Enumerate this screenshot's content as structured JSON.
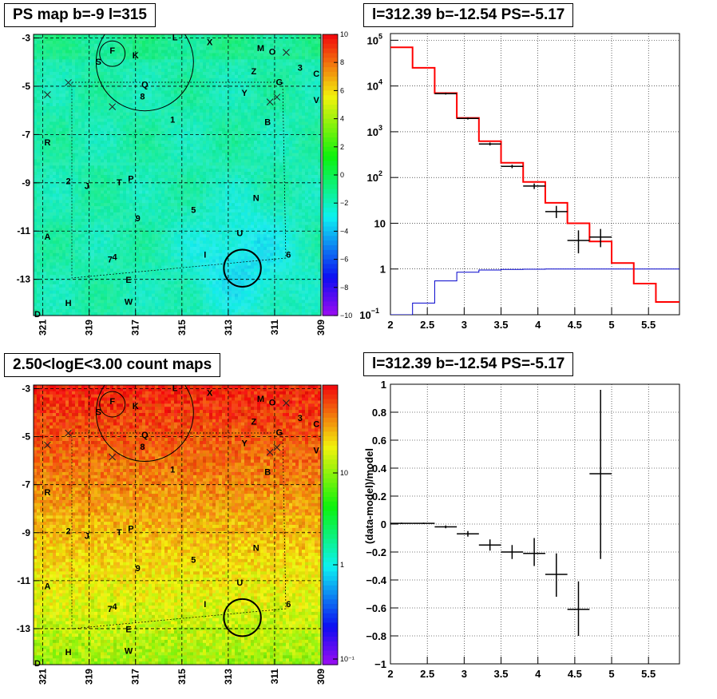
{
  "panels": {
    "ps_map": {
      "title": "PS map b=-9 l=315",
      "colorbar_ticks": [
        "10",
        "8",
        "6",
        "4",
        "2",
        "0",
        "−2",
        "−4",
        "−6",
        "−8",
        "−10"
      ]
    },
    "spectrum": {
      "title": "l=312.39 b=-12.54 PS=-5.17"
    },
    "count_map": {
      "title": "2.50<logE<3.00 count maps",
      "colorbar_ticks": [
        "10",
        "1",
        "10⁻¹"
      ]
    },
    "residual": {
      "title": "l=312.39 b=-12.54 PS=-5.17"
    }
  },
  "map_axes": {
    "x_ticks": [
      "321",
      "319",
      "317",
      "315",
      "313",
      "311",
      "309"
    ],
    "y_ticks": [
      "-3",
      "-5",
      "-7",
      "-9",
      "-11",
      "-13"
    ],
    "corner_label": "D"
  },
  "source_labels": [
    {
      "text": "F",
      "l": 318.0,
      "b": -3.65
    },
    {
      "text": "S",
      "l": 318.6,
      "b": -4.1
    },
    {
      "text": "K",
      "l": 317.0,
      "b": -3.85
    },
    {
      "text": "L",
      "l": 315.3,
      "b": -3.1
    },
    {
      "text": "X",
      "l": 313.8,
      "b": -3.3
    },
    {
      "text": "M",
      "l": 311.6,
      "b": -3.55
    },
    {
      "text": "O",
      "l": 311.1,
      "b": -3.7
    },
    {
      "text": "3",
      "l": 309.9,
      "b": -4.35
    },
    {
      "text": "C",
      "l": 309.2,
      "b": -4.6
    },
    {
      "text": "Z",
      "l": 311.9,
      "b": -4.5
    },
    {
      "text": "G",
      "l": 310.8,
      "b": -4.95
    },
    {
      "text": "Q",
      "l": 316.6,
      "b": -5.05
    },
    {
      "text": "8",
      "l": 316.7,
      "b": -5.55
    },
    {
      "text": "Y",
      "l": 312.3,
      "b": -5.4
    },
    {
      "text": "V",
      "l": 309.2,
      "b": -5.7
    },
    {
      "text": "1",
      "l": 315.4,
      "b": -6.5
    },
    {
      "text": "B",
      "l": 311.3,
      "b": -6.6
    },
    {
      "text": "R",
      "l": 320.8,
      "b": -7.45
    },
    {
      "text": "2",
      "l": 319.9,
      "b": -9.05
    },
    {
      "text": "J",
      "l": 319.1,
      "b": -9.25
    },
    {
      "text": "T",
      "l": 317.7,
      "b": -9.1
    },
    {
      "text": "P",
      "l": 317.2,
      "b": -8.95
    },
    {
      "text": "N",
      "l": 311.8,
      "b": -9.75
    },
    {
      "text": "5",
      "l": 314.5,
      "b": -10.25
    },
    {
      "text": "9",
      "l": 316.9,
      "b": -10.6
    },
    {
      "text": "U",
      "l": 312.5,
      "b": -11.2
    },
    {
      "text": "A",
      "l": 320.8,
      "b": -11.35
    },
    {
      "text": "6",
      "l": 310.4,
      "b": -12.1
    },
    {
      "text": "I",
      "l": 314.0,
      "b": -12.1
    },
    {
      "text": "4",
      "l": 317.9,
      "b": -12.2
    },
    {
      "text": "7",
      "l": 318.1,
      "b": -12.3
    },
    {
      "text": "E",
      "l": 317.3,
      "b": -13.15
    },
    {
      "text": "W",
      "l": 317.3,
      "b": -14.05
    },
    {
      "text": "H",
      "l": 319.9,
      "b": -14.1
    }
  ],
  "cross_markers": [
    {
      "l": 319.9,
      "b": -4.85
    },
    {
      "l": 320.8,
      "b": -5.35
    },
    {
      "l": 318.0,
      "b": -5.85
    },
    {
      "l": 311.2,
      "b": -5.65
    },
    {
      "l": 310.9,
      "b": -5.45
    },
    {
      "l": 310.5,
      "b": -3.6
    }
  ],
  "circles": [
    {
      "l": 318.0,
      "b": -3.65,
      "r_deg": 0.55
    },
    {
      "l": 316.6,
      "b": -4.0,
      "r_deg": 2.1
    },
    {
      "l": 312.39,
      "b": -12.54,
      "r_deg": 0.8,
      "bold": true
    }
  ],
  "colors": {
    "model": "#ff0000",
    "baseline": "#0000cc",
    "data": "#000000",
    "grid": "#000000"
  },
  "chart_data": [
    {
      "type": "line",
      "title": "l=312.39 b=-12.54 PS=-5.17",
      "yscale": "log",
      "xlim": [
        2,
        5.92
      ],
      "ylim": [
        0.1,
        140000
      ],
      "x_ticks": [
        "2",
        "2.5",
        "3",
        "3.5",
        "4",
        "4.5",
        "5",
        "5.5"
      ],
      "y_ticks": [
        {
          "v": 100000,
          "base": "10",
          "exp": "5"
        },
        {
          "v": 10000,
          "base": "10",
          "exp": "4"
        },
        {
          "v": 1000,
          "base": "10",
          "exp": "3"
        },
        {
          "v": 100,
          "base": "10",
          "exp": "2"
        },
        {
          "v": 10,
          "base": "10",
          "exp": ""
        },
        {
          "v": 1,
          "base": "1",
          "exp": ""
        },
        {
          "v": 0.1,
          "base": "10",
          "exp": "−1"
        }
      ],
      "model_steps": {
        "edges": [
          2.0,
          2.3,
          2.6,
          2.9,
          3.2,
          3.5,
          3.8,
          4.1,
          4.4,
          4.7,
          5.0,
          5.3,
          5.6,
          5.92
        ],
        "values": [
          70000,
          25000,
          7000,
          2000,
          620,
          210,
          80,
          28,
          10,
          4.0,
          1.35,
          0.48,
          0.19
        ]
      },
      "baseline_steps": {
        "edges": [
          2.0,
          2.3,
          2.6,
          2.9,
          3.2,
          3.5,
          3.8,
          4.1,
          4.4,
          4.7,
          5.0,
          5.3,
          5.6,
          5.92
        ],
        "values": [
          0.1,
          0.18,
          0.55,
          0.85,
          0.95,
          0.98,
          0.99,
          1.0,
          1.0,
          1.0,
          1.0,
          1.0,
          1.0
        ]
      },
      "data_points": [
        {
          "x": 2.75,
          "xerr": 0.15,
          "y": 6800,
          "ylo": 6500,
          "yhi": 7100
        },
        {
          "x": 3.05,
          "xerr": 0.15,
          "y": 1950,
          "ylo": 1850,
          "yhi": 2050
        },
        {
          "x": 3.35,
          "xerr": 0.15,
          "y": 540,
          "ylo": 500,
          "yhi": 580
        },
        {
          "x": 3.65,
          "xerr": 0.15,
          "y": 175,
          "ylo": 160,
          "yhi": 190
        },
        {
          "x": 3.95,
          "xerr": 0.15,
          "y": 65,
          "ylo": 56,
          "yhi": 74
        },
        {
          "x": 4.25,
          "xerr": 0.15,
          "y": 18,
          "ylo": 13,
          "yhi": 24
        },
        {
          "x": 4.55,
          "xerr": 0.15,
          "y": 4.2,
          "ylo": 2.2,
          "yhi": 7
        },
        {
          "x": 4.85,
          "xerr": 0.15,
          "y": 5.0,
          "ylo": 3.0,
          "yhi": 7.5
        }
      ]
    },
    {
      "type": "scatter",
      "title": "l=312.39 b=-12.54 PS=-5.17",
      "ylabel": "(data-model)/model",
      "xlim": [
        2,
        5.92
      ],
      "ylim": [
        -1,
        1
      ],
      "x_ticks": [
        "2",
        "2.5",
        "3",
        "3.5",
        "4",
        "4.5",
        "5",
        "5.5"
      ],
      "y_ticks": [
        "1",
        "0.8",
        "0.6",
        "0.4",
        "0.2",
        "0",
        "−0.2",
        "−0.4",
        "−0.6",
        "−0.8",
        "−1"
      ],
      "data_points": [
        {
          "x": 2.15,
          "xerr": 0.15,
          "y": 0.005,
          "ylo": 0.0,
          "yhi": 0.01
        },
        {
          "x": 2.45,
          "xerr": 0.15,
          "y": 0.005,
          "ylo": 0.0,
          "yhi": 0.01
        },
        {
          "x": 2.75,
          "xerr": 0.15,
          "y": -0.02,
          "ylo": -0.03,
          "yhi": -0.01
        },
        {
          "x": 3.05,
          "xerr": 0.15,
          "y": -0.07,
          "ylo": -0.09,
          "yhi": -0.05
        },
        {
          "x": 3.35,
          "xerr": 0.15,
          "y": -0.15,
          "ylo": -0.19,
          "yhi": -0.11
        },
        {
          "x": 3.65,
          "xerr": 0.15,
          "y": -0.2,
          "ylo": -0.25,
          "yhi": -0.15
        },
        {
          "x": 3.95,
          "xerr": 0.15,
          "y": -0.21,
          "ylo": -0.3,
          "yhi": -0.1
        },
        {
          "x": 4.25,
          "xerr": 0.15,
          "y": -0.36,
          "ylo": -0.52,
          "yhi": -0.21
        },
        {
          "x": 4.55,
          "xerr": 0.15,
          "y": -0.61,
          "ylo": -0.8,
          "yhi": -0.41
        },
        {
          "x": 4.85,
          "xerr": 0.15,
          "y": 0.36,
          "ylo": -0.25,
          "yhi": 0.96
        }
      ]
    }
  ]
}
